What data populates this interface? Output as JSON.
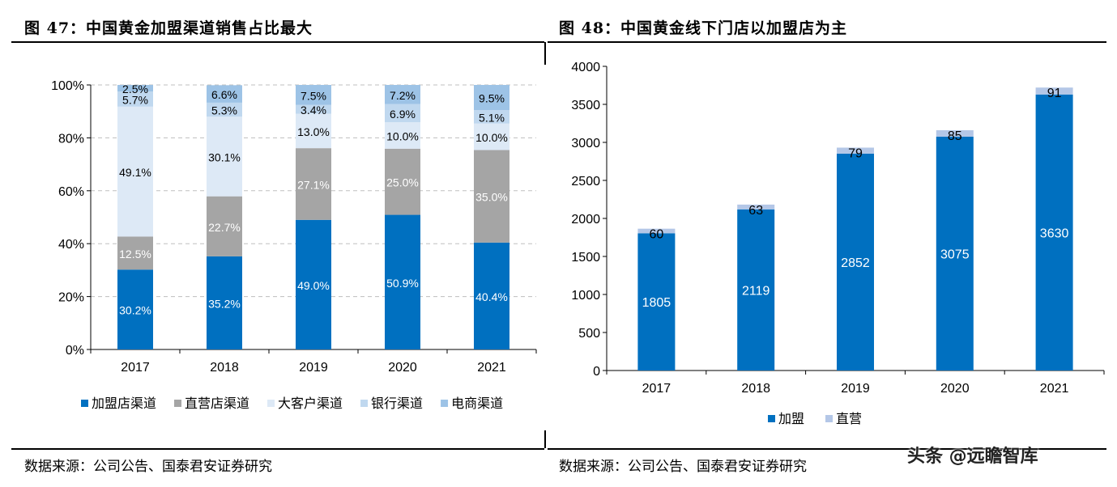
{
  "figure1": {
    "title": "图 47：中国黄金加盟渠道销售占比最大",
    "source": "数据来源：公司公告、国泰君安证券研究",
    "chart_data": {
      "type": "bar",
      "stacked": true,
      "categories": [
        "2017",
        "2018",
        "2019",
        "2020",
        "2021"
      ],
      "y_ticks": [
        "0%",
        "20%",
        "40%",
        "60%",
        "80%",
        "100%"
      ],
      "ylim": [
        0,
        100
      ],
      "grid": true,
      "legend_position": "bottom",
      "series": [
        {
          "name": "加盟店渠道",
          "color": "#0070c0",
          "label_color": "#ffffff",
          "values": [
            30.2,
            35.2,
            49.0,
            50.9,
            40.4
          ],
          "labels": [
            "30.2%",
            "35.2%",
            "49.0%",
            "50.9%",
            "40.4%"
          ]
        },
        {
          "name": "直营店渠道",
          "color": "#a5a5a5",
          "label_color": "#ffffff",
          "values": [
            12.5,
            22.7,
            27.1,
            25.0,
            35.0
          ],
          "labels": [
            "12.5%",
            "22.7%",
            "27.1%",
            "25.0%",
            "35.0%"
          ]
        },
        {
          "name": "大客户渠道",
          "color": "#dde9f6",
          "label_color": "#000000",
          "values": [
            49.1,
            30.1,
            13.0,
            10.0,
            10.0
          ],
          "labels": [
            "49.1%",
            "30.1%",
            "13.0%",
            "10.0%",
            "10.0%"
          ]
        },
        {
          "name": "银行渠道",
          "color": "#c0d8ef",
          "label_color": "#000000",
          "values": [
            5.7,
            5.3,
            3.4,
            6.9,
            5.1
          ],
          "labels": [
            "5.7%",
            "5.3%",
            "3.4%",
            "6.9%",
            "5.1%"
          ]
        },
        {
          "name": "电商渠道",
          "color": "#9dc3e6",
          "label_color": "#000000",
          "values": [
            2.5,
            6.6,
            7.5,
            7.2,
            9.5
          ],
          "labels": [
            "2.5%",
            "6.6%",
            "7.5%",
            "7.2%",
            "9.5%"
          ]
        }
      ]
    }
  },
  "figure2": {
    "title": "图 48：中国黄金线下门店以加盟店为主",
    "source": "数据来源：公司公告、国泰君安证券研究",
    "chart_data": {
      "type": "bar",
      "stacked": true,
      "categories": [
        "2017",
        "2018",
        "2019",
        "2020",
        "2021"
      ],
      "y_ticks": [
        "0",
        "500",
        "1000",
        "1500",
        "2000",
        "2500",
        "3000",
        "3500",
        "4000"
      ],
      "ylim": [
        0,
        4000
      ],
      "grid": false,
      "legend_position": "bottom",
      "series": [
        {
          "name": "加盟",
          "color": "#0070c0",
          "label_color": "#ffffff",
          "values": [
            1805,
            2119,
            2852,
            3075,
            3630
          ],
          "labels": [
            "1805",
            "2119",
            "2852",
            "3075",
            "3630"
          ]
        },
        {
          "name": "直营",
          "color": "#b4c7e7",
          "label_color": "#000000",
          "values": [
            60,
            63,
            79,
            85,
            91
          ],
          "labels": [
            "60",
            "63",
            "79",
            "85",
            "91"
          ]
        }
      ]
    }
  },
  "watermark": "头条 @远瞻智库"
}
